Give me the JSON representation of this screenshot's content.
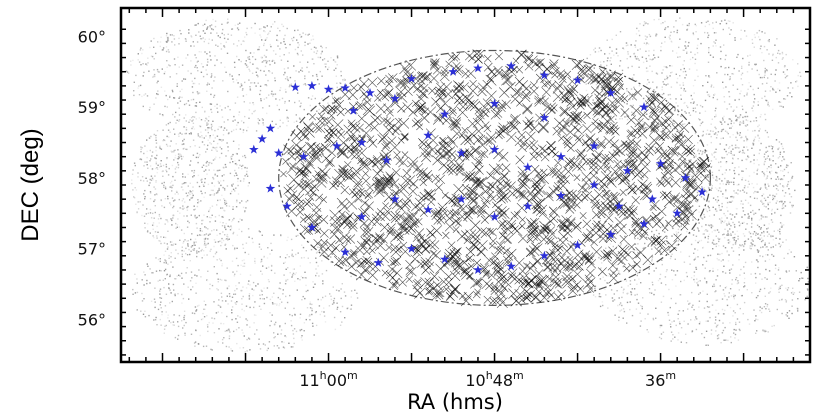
{
  "chart_data": {
    "type": "scatter",
    "xlabel": "RA (hms)",
    "ylabel": "DEC (deg)",
    "xlim": [
      11.25,
      10.42
    ],
    "ylim": [
      55.4,
      60.4
    ],
    "x_ticks": [
      {
        "value": 11.0,
        "h": "11",
        "m": "00"
      },
      {
        "value": 10.8,
        "h": "10",
        "m": "48"
      },
      {
        "value": 10.6,
        "h": "",
        "m": "36"
      }
    ],
    "y_ticks": [
      {
        "value": 56,
        "label": "56°"
      },
      {
        "value": 57,
        "label": "57°"
      },
      {
        "value": 58,
        "label": "58°"
      },
      {
        "value": 59,
        "label": "59°"
      },
      {
        "value": 60,
        "label": "60°"
      }
    ],
    "field": {
      "center_ra": 10.8,
      "center_dec": 58.0,
      "ra_radius": 0.26,
      "dec_radius": 1.8
    },
    "colors": {
      "background": "#ffffff",
      "survey_density": "#888888",
      "sources": "#000000",
      "highlighted_sources": "#2b2fd6",
      "field_outline": "#555555"
    },
    "series": [
      {
        "marker": "x",
        "color": "#000000",
        "density": "dense"
      },
      {
        "marker": "star",
        "color": "#2b2fd6",
        "density": "sparse",
        "points": [
          [
            11.04,
            59.28
          ],
          [
            11.02,
            59.3
          ],
          [
            11.0,
            59.25
          ],
          [
            10.98,
            59.27
          ],
          [
            10.95,
            59.2
          ],
          [
            10.92,
            59.12
          ],
          [
            10.9,
            59.4
          ],
          [
            10.85,
            59.5
          ],
          [
            10.82,
            59.55
          ],
          [
            10.78,
            59.58
          ],
          [
            10.74,
            59.45
          ],
          [
            10.7,
            59.38
          ],
          [
            10.66,
            59.2
          ],
          [
            10.62,
            59.0
          ],
          [
            11.07,
            58.7
          ],
          [
            11.08,
            58.55
          ],
          [
            11.09,
            58.4
          ],
          [
            11.06,
            58.35
          ],
          [
            11.03,
            58.3
          ],
          [
            10.99,
            58.45
          ],
          [
            10.96,
            58.5
          ],
          [
            10.93,
            58.25
          ],
          [
            10.88,
            58.6
          ],
          [
            10.84,
            58.35
          ],
          [
            10.8,
            58.4
          ],
          [
            10.76,
            58.15
          ],
          [
            10.72,
            58.3
          ],
          [
            10.68,
            58.45
          ],
          [
            10.64,
            58.1
          ],
          [
            10.6,
            58.2
          ],
          [
            10.57,
            58.0
          ],
          [
            10.55,
            57.8
          ],
          [
            10.58,
            57.5
          ],
          [
            10.62,
            57.35
          ],
          [
            10.66,
            57.2
          ],
          [
            10.7,
            57.05
          ],
          [
            10.74,
            56.9
          ],
          [
            10.78,
            56.75
          ],
          [
            10.82,
            56.7
          ],
          [
            10.86,
            56.85
          ],
          [
            10.9,
            57.0
          ],
          [
            10.94,
            56.8
          ],
          [
            10.98,
            56.95
          ],
          [
            11.02,
            57.3
          ],
          [
            11.05,
            57.6
          ],
          [
            11.07,
            57.85
          ],
          [
            10.88,
            57.55
          ],
          [
            10.84,
            57.7
          ],
          [
            10.8,
            57.45
          ],
          [
            10.76,
            57.6
          ],
          [
            10.72,
            57.75
          ],
          [
            10.92,
            57.7
          ],
          [
            10.96,
            57.45
          ],
          [
            10.68,
            57.9
          ],
          [
            10.86,
            58.9
          ],
          [
            10.8,
            59.05
          ],
          [
            10.74,
            58.85
          ],
          [
            10.97,
            58.95
          ],
          [
            10.65,
            57.6
          ],
          [
            10.61,
            57.7
          ]
        ]
      }
    ]
  }
}
